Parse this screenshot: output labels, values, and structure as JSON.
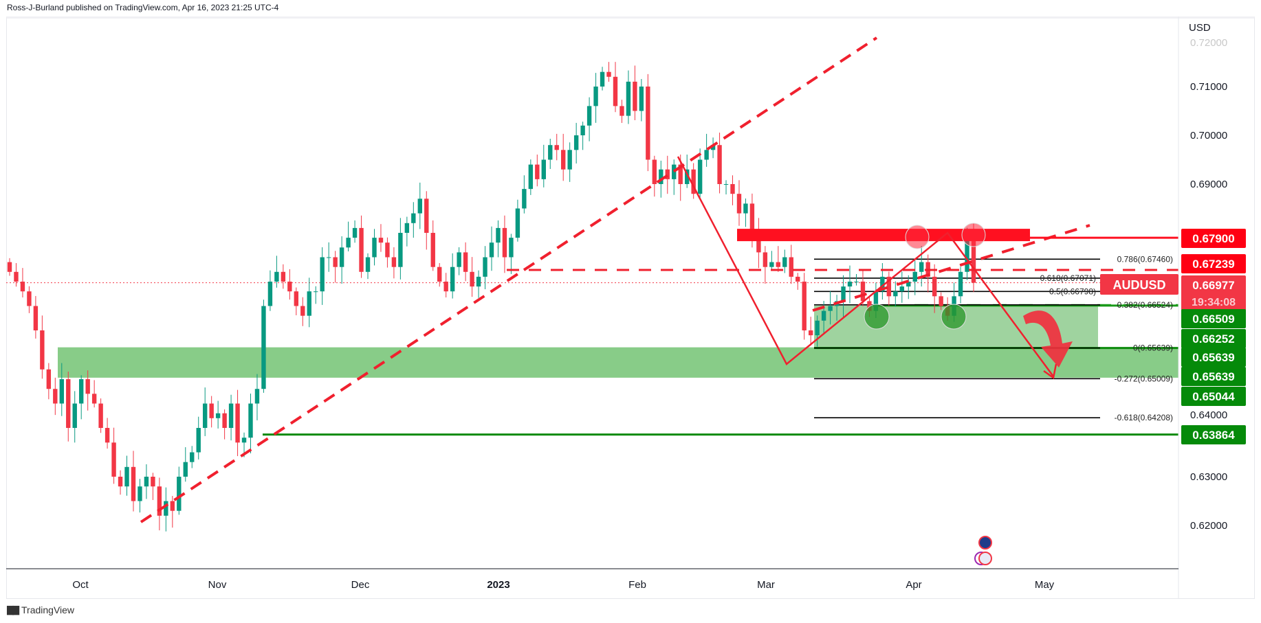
{
  "header": {
    "publisher_line": "Ross-J-Burland published on TradingView.com, Apr 16, 2023 21:25 UTC-4"
  },
  "footer": {
    "brand": "TradingView"
  },
  "colors": {
    "up": "#089981",
    "down": "#F23645",
    "resistance": "#FF1020",
    "support": "#0B8A0B",
    "zone_green": "#7BC67B"
  },
  "chart_data": {
    "type": "candlestick",
    "symbol": "AUDUSD",
    "currency_label": "USD",
    "timeframe": "daily",
    "y_ticks": [
      "0.72000",
      "0.71000",
      "0.70000",
      "0.69000",
      "0.63000",
      "0.62000"
    ],
    "y_tick_values": [
      0.72,
      0.71,
      0.7,
      0.69,
      0.63,
      0.62
    ],
    "ylim": [
      0.613,
      0.728
    ],
    "x_ticks": [
      "Oct",
      "Nov",
      "Dec",
      "2023",
      "Feb",
      "Mar",
      "Apr",
      "May"
    ],
    "closes": [
      0.672,
      0.67,
      0.668,
      0.665,
      0.66,
      0.652,
      0.648,
      0.645,
      0.65,
      0.64,
      0.645,
      0.65,
      0.647,
      0.645,
      0.64,
      0.637,
      0.63,
      0.628,
      0.632,
      0.625,
      0.628,
      0.63,
      0.628,
      0.622,
      0.625,
      0.623,
      0.63,
      0.633,
      0.635,
      0.64,
      0.645,
      0.642,
      0.643,
      0.64,
      0.645,
      0.637,
      0.638,
      0.645,
      0.648,
      0.665,
      0.67,
      0.672,
      0.67,
      0.668,
      0.665,
      0.663,
      0.668,
      0.668,
      0.675,
      0.675,
      0.673,
      0.677,
      0.679,
      0.681,
      0.672,
      0.675,
      0.679,
      0.678,
      0.675,
      0.673,
      0.68,
      0.682,
      0.684,
      0.687,
      0.68,
      0.673,
      0.67,
      0.668,
      0.673,
      0.676,
      0.672,
      0.669,
      0.671,
      0.675,
      0.678,
      0.681,
      0.675,
      0.679,
      0.685,
      0.689,
      0.694,
      0.691,
      0.695,
      0.698,
      0.697,
      0.693,
      0.697,
      0.7,
      0.702,
      0.706,
      0.71,
      0.713,
      0.712,
      0.706,
      0.704,
      0.711,
      0.705,
      0.71,
      0.695,
      0.69,
      0.693,
      0.691,
      0.694,
      0.69,
      0.693,
      0.688,
      0.695,
      0.697,
      0.698,
      0.69,
      0.69,
      0.688,
      0.684,
      0.686,
      0.68,
      0.676,
      0.673,
      0.674,
      0.673,
      0.675,
      0.671,
      0.67,
      0.66,
      0.659,
      0.662,
      0.664,
      0.665,
      0.666,
      0.669,
      0.67,
      0.67,
      0.666,
      0.664,
      0.668,
      0.671,
      0.667,
      0.668,
      0.669,
      0.67,
      0.672,
      0.674,
      0.671,
      0.667,
      0.665,
      0.663,
      0.667,
      0.672,
      0.679,
      0.66977
    ],
    "price_labels": [
      {
        "value": "0.67900",
        "kind": "resistance"
      },
      {
        "value": "0.67239",
        "kind": "resistance"
      },
      {
        "value": "0.66977",
        "kind": "current",
        "countdown": "19:34:08"
      },
      {
        "value": "0.66509",
        "kind": "support"
      },
      {
        "value": "0.66252",
        "kind": "support"
      },
      {
        "value": "0.65639",
        "kind": "support"
      },
      {
        "value": "0.65639",
        "kind": "support"
      },
      {
        "value": "0.65044",
        "kind": "support"
      },
      {
        "value": "0.63864",
        "kind": "support"
      }
    ],
    "partial_tick": "0.64000",
    "fib_levels": [
      {
        "ratio": 0.786,
        "price": 0.6746,
        "label": "0.786(0.67460)"
      },
      {
        "ratio": 0.618,
        "price": 0.67071,
        "label": "0.618(0.67071)"
      },
      {
        "ratio": 0.5,
        "price": 0.66798,
        "label": "0.5(0.66798)"
      },
      {
        "ratio": 0.382,
        "price": 0.66524,
        "label": "0.382(0.66524)"
      },
      {
        "ratio": 0,
        "price": 0.65639,
        "label": "0(0.65639)"
      },
      {
        "ratio": -0.272,
        "price": 0.65009,
        "label": "-0.272(0.65009)"
      },
      {
        "ratio": -0.618,
        "price": 0.64208,
        "label": "-0.618(0.64208)"
      }
    ],
    "levels": {
      "resistance_zone": 0.679,
      "dashed_resistance": 0.67239,
      "support_top": 0.66509,
      "support_bottom": 0.65639,
      "support_band_low": 0.65044,
      "support_low": 0.63864
    },
    "symbol_tag": "AUDUSD"
  }
}
